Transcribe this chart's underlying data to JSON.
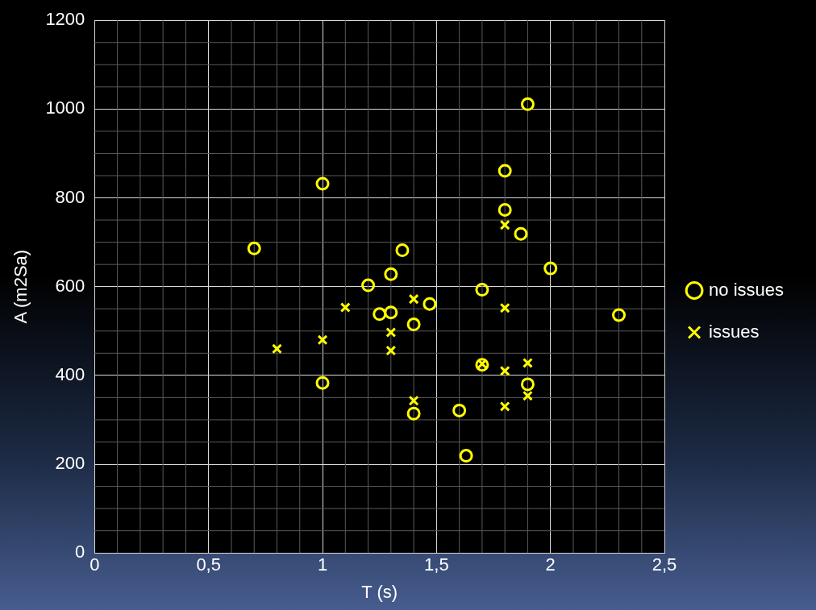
{
  "chart_data": {
    "type": "scatter",
    "xlabel": "T (s)",
    "ylabel": "A (m2Sa)",
    "xlim": [
      0,
      2.5
    ],
    "xticks": [
      0,
      {
        "value": 0.5,
        "label": "0,5"
      },
      1,
      {
        "value": 1.5,
        "label": "1,5"
      },
      2,
      {
        "value": 2.5,
        "label": "2,5"
      }
    ],
    "ylim": [
      0,
      1200
    ],
    "yticks": [
      0,
      200,
      400,
      600,
      800,
      1000,
      1200
    ],
    "grid": true,
    "legend": "right",
    "series": [
      {
        "name": "no issues",
        "color": "#ffff00",
        "marker": "circle",
        "x": [
          0.7,
          1.0,
          1.0,
          1.2,
          1.25,
          1.3,
          1.3,
          1.35,
          1.4,
          1.47,
          1.4,
          1.6,
          1.63,
          1.7,
          1.7,
          1.8,
          1.8,
          1.87,
          1.9,
          1.9,
          2.0,
          2.3
        ],
        "values": [
          686,
          832,
          383,
          603,
          538,
          628,
          542,
          682,
          515,
          561,
          314,
          321,
          219,
          593,
          424,
          861,
          773,
          719,
          1011,
          380,
          641,
          536
        ]
      },
      {
        "name": "issues",
        "color": "#ffff00",
        "marker": "cross",
        "x": [
          0.8,
          1.0,
          1.1,
          1.3,
          1.3,
          1.4,
          1.4,
          1.7,
          1.8,
          1.8,
          1.8,
          1.8,
          1.9,
          1.9
        ],
        "values": [
          460,
          480,
          553,
          497,
          456,
          572,
          343,
          426,
          739,
          552,
          410,
          330,
          428,
          354
        ]
      }
    ]
  }
}
